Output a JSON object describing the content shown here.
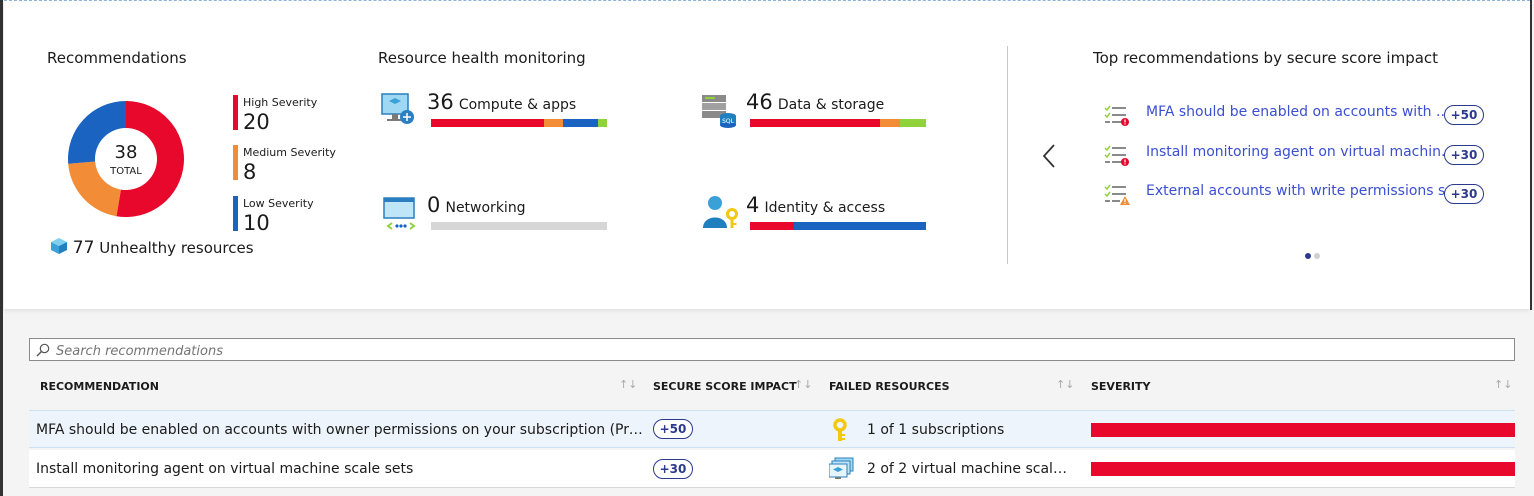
{
  "colors": {
    "high": "#e8082c",
    "medium": "#f28c36",
    "low": "#1a63c1",
    "green": "#8fd23c",
    "gray": "#d6d6d6",
    "link": "#3a4fd1"
  },
  "recommendations": {
    "title": "Recommendations",
    "total": "38",
    "total_label": "TOTAL",
    "severity": [
      {
        "label": "High Severity",
        "count": "20",
        "value": 20
      },
      {
        "label": "Medium Severity",
        "count": "8",
        "value": 8
      },
      {
        "label": "Low Severity",
        "count": "10",
        "value": 10
      }
    ],
    "unhealthy_count": "77",
    "unhealthy_label": "Unhealthy resources",
    "unhealthy_icon": "cube-icon"
  },
  "resource_health": {
    "title": "Resource health monitoring",
    "tiles": [
      {
        "count": "36",
        "label": "Compute & apps",
        "icon": "compute-icon",
        "segments": [
          0.64,
          0.11,
          0.2,
          0.05
        ]
      },
      {
        "count": "46",
        "label": "Data & storage",
        "icon": "sql-storage-icon",
        "segments": [
          0.74,
          0.11,
          0.0,
          0.15
        ]
      },
      {
        "count": "0",
        "label": "Networking",
        "icon": "networking-icon",
        "segments": [
          0,
          0,
          0,
          0
        ]
      },
      {
        "count": "4",
        "label": "Identity & access",
        "icon": "identity-key-icon",
        "segments": [
          0.25,
          0.0,
          0.75,
          0.0
        ]
      }
    ]
  },
  "top_recommendations": {
    "title": "Top recommendations by secure score impact",
    "items": [
      {
        "label": "MFA should be enabled on accounts with ...",
        "impact": "+50",
        "icon": "checklist-error-icon"
      },
      {
        "label": "Install monitoring agent on virtual machin...",
        "impact": "+30",
        "icon": "checklist-error-icon"
      },
      {
        "label": "External accounts with write permissions s...",
        "impact": "+30",
        "icon": "checklist-warning-icon"
      }
    ],
    "prev_icon": "chevron-left-icon"
  },
  "search": {
    "placeholder": "Search recommendations"
  },
  "table": {
    "headers": [
      "RECOMMENDATION",
      "SECURE SCORE IMPACT",
      "FAILED RESOURCES",
      "SEVERITY"
    ],
    "rows": [
      {
        "recommendation": "MFA should be enabled on accounts with owner permissions on your subscription (Previ...",
        "impact": "+50",
        "failed": "1 of 1 subscriptions",
        "failed_icon": "key-icon",
        "severity": "high"
      },
      {
        "recommendation": "Install monitoring agent on virtual machine scale sets",
        "impact": "+30",
        "failed": "2 of 2 virtual machine scale s...",
        "failed_icon": "vm-scale-set-icon",
        "severity": "high"
      }
    ]
  }
}
